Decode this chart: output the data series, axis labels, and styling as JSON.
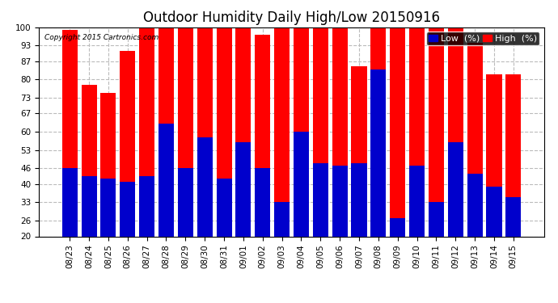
{
  "title": "Outdoor Humidity Daily High/Low 20150916",
  "copyright": "Copyright 2015 Cartronics.com",
  "dates": [
    "08/23",
    "08/24",
    "08/25",
    "08/26",
    "08/27",
    "08/28",
    "08/29",
    "08/30",
    "08/31",
    "09/01",
    "09/02",
    "09/03",
    "09/04",
    "09/05",
    "09/06",
    "09/07",
    "09/08",
    "09/09",
    "09/10",
    "09/11",
    "09/12",
    "09/13",
    "09/14",
    "09/15"
  ],
  "high": [
    99,
    78,
    75,
    91,
    100,
    100,
    100,
    100,
    100,
    100,
    97,
    100,
    100,
    100,
    100,
    85,
    100,
    100,
    100,
    100,
    100,
    94,
    82,
    82
  ],
  "low": [
    46,
    43,
    42,
    41,
    43,
    63,
    46,
    58,
    42,
    56,
    46,
    33,
    60,
    48,
    47,
    48,
    84,
    27,
    47,
    33,
    56,
    44,
    39,
    35
  ],
  "bg_color": "#ffffff",
  "high_color": "#ff0000",
  "low_color": "#0000cc",
  "grid_color": "#bbbbbb",
  "ylim_min": 20,
  "ylim_max": 100,
  "yticks": [
    20,
    26,
    33,
    40,
    46,
    53,
    60,
    67,
    73,
    80,
    87,
    93,
    100
  ],
  "bar_width": 0.8,
  "title_fontsize": 12,
  "tick_fontsize": 7.5,
  "legend_fontsize": 8
}
